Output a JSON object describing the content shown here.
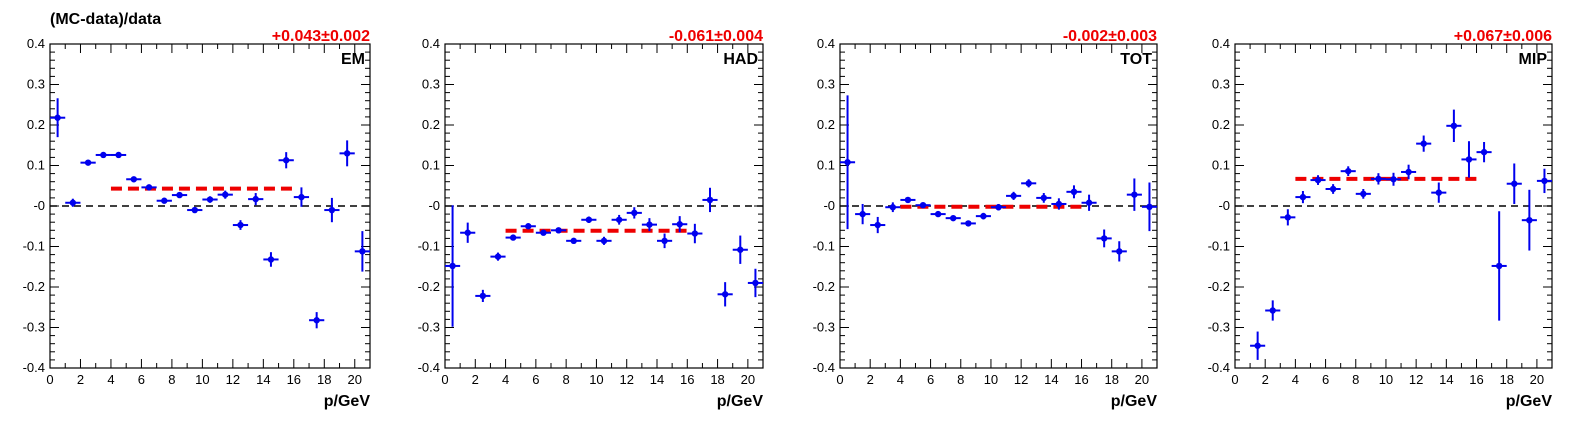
{
  "page_ylabel": "(MC-data)/data",
  "chart_data": [
    {
      "type": "scatter",
      "label": "EM",
      "fit_text": "+0.043±0.002",
      "fit_value": 0.043,
      "fit_range": [
        4,
        16
      ],
      "xlabel": "p/GeV",
      "xlim": [
        0,
        21
      ],
      "ylim": [
        -0.4,
        0.4
      ],
      "x_ticks": [
        0,
        2,
        4,
        6,
        8,
        10,
        12,
        14,
        16,
        18,
        20
      ],
      "y_ticks": [
        -0.4,
        -0.3,
        -0.2,
        -0.1,
        0,
        0.1,
        0.2,
        0.3,
        0.4
      ],
      "y_tick_labels": [
        "-0.4",
        "-0.3",
        "-0.2",
        "-0.1",
        "-0",
        "0.1",
        "0.2",
        "0.3",
        "0.4"
      ],
      "points": [
        {
          "x": 0.5,
          "y": 0.218,
          "err": 0.048
        },
        {
          "x": 1.5,
          "y": 0.008,
          "err": 0.01
        },
        {
          "x": 2.5,
          "y": 0.107,
          "err": 0.004
        },
        {
          "x": 3.5,
          "y": 0.126,
          "err": 0.003
        },
        {
          "x": 4.5,
          "y": 0.126,
          "err": 0.003
        },
        {
          "x": 5.5,
          "y": 0.066,
          "err": 0.004
        },
        {
          "x": 6.5,
          "y": 0.046,
          "err": 0.004
        },
        {
          "x": 7.5,
          "y": 0.013,
          "err": 0.005
        },
        {
          "x": 8.5,
          "y": 0.027,
          "err": 0.006
        },
        {
          "x": 9.5,
          "y": -0.01,
          "err": 0.007
        },
        {
          "x": 10.5,
          "y": 0.016,
          "err": 0.008
        },
        {
          "x": 11.5,
          "y": 0.028,
          "err": 0.01
        },
        {
          "x": 12.5,
          "y": -0.047,
          "err": 0.012
        },
        {
          "x": 13.5,
          "y": 0.017,
          "err": 0.015
        },
        {
          "x": 14.5,
          "y": -0.132,
          "err": 0.018
        },
        {
          "x": 15.5,
          "y": 0.113,
          "err": 0.02
        },
        {
          "x": 16.5,
          "y": 0.022,
          "err": 0.024
        },
        {
          "x": 17.5,
          "y": -0.282,
          "err": 0.02
        },
        {
          "x": 18.5,
          "y": -0.01,
          "err": 0.03
        },
        {
          "x": 19.5,
          "y": 0.13,
          "err": 0.032
        },
        {
          "x": 20.5,
          "y": -0.112,
          "err": 0.05
        }
      ]
    },
    {
      "type": "scatter",
      "label": "HAD",
      "fit_text": "-0.061±0.004",
      "fit_value": -0.061,
      "fit_range": [
        4,
        16
      ],
      "xlabel": "p/GeV",
      "xlim": [
        0,
        21
      ],
      "ylim": [
        -0.4,
        0.4
      ],
      "x_ticks": [
        0,
        2,
        4,
        6,
        8,
        10,
        12,
        14,
        16,
        18,
        20
      ],
      "y_ticks": [
        -0.4,
        -0.3,
        -0.2,
        -0.1,
        0,
        0.1,
        0.2,
        0.3,
        0.4
      ],
      "y_tick_labels": [
        "-0.4",
        "-0.3",
        "-0.2",
        "-0.1",
        "-0",
        "0.1",
        "0.2",
        "0.3",
        "0.4"
      ],
      "points": [
        {
          "x": 0.5,
          "y": -0.148,
          "err": 0.15
        },
        {
          "x": 1.5,
          "y": -0.066,
          "err": 0.025
        },
        {
          "x": 2.5,
          "y": -0.222,
          "err": 0.015
        },
        {
          "x": 3.5,
          "y": -0.125,
          "err": 0.01
        },
        {
          "x": 4.5,
          "y": -0.078,
          "err": 0.007
        },
        {
          "x": 5.5,
          "y": -0.05,
          "err": 0.006
        },
        {
          "x": 6.5,
          "y": -0.066,
          "err": 0.006
        },
        {
          "x": 7.5,
          "y": -0.06,
          "err": 0.006
        },
        {
          "x": 8.5,
          "y": -0.086,
          "err": 0.007
        },
        {
          "x": 9.5,
          "y": -0.034,
          "err": 0.008
        },
        {
          "x": 10.5,
          "y": -0.086,
          "err": 0.01
        },
        {
          "x": 11.5,
          "y": -0.034,
          "err": 0.012
        },
        {
          "x": 12.5,
          "y": -0.017,
          "err": 0.014
        },
        {
          "x": 13.5,
          "y": -0.046,
          "err": 0.016
        },
        {
          "x": 14.5,
          "y": -0.086,
          "err": 0.018
        },
        {
          "x": 15.5,
          "y": -0.045,
          "err": 0.02
        },
        {
          "x": 16.5,
          "y": -0.068,
          "err": 0.024
        },
        {
          "x": 17.5,
          "y": 0.015,
          "err": 0.03
        },
        {
          "x": 18.5,
          "y": -0.218,
          "err": 0.03
        },
        {
          "x": 19.5,
          "y": -0.108,
          "err": 0.035
        },
        {
          "x": 20.5,
          "y": -0.19,
          "err": 0.035
        }
      ]
    },
    {
      "type": "scatter",
      "label": "TOT",
      "fit_text": "-0.002±0.003",
      "fit_value": -0.002,
      "fit_range": [
        4,
        16
      ],
      "xlabel": "p/GeV",
      "xlim": [
        0,
        21
      ],
      "ylim": [
        -0.4,
        0.4
      ],
      "x_ticks": [
        0,
        2,
        4,
        6,
        8,
        10,
        12,
        14,
        16,
        18,
        20
      ],
      "y_ticks": [
        -0.4,
        -0.3,
        -0.2,
        -0.1,
        0,
        0.1,
        0.2,
        0.3,
        0.4
      ],
      "y_tick_labels": [
        "-0.4",
        "-0.3",
        "-0.2",
        "-0.1",
        "-0",
        "0.1",
        "0.2",
        "0.3",
        "0.4"
      ],
      "points": [
        {
          "x": 0.5,
          "y": 0.108,
          "err": 0.165
        },
        {
          "x": 1.5,
          "y": -0.02,
          "err": 0.025
        },
        {
          "x": 2.5,
          "y": -0.047,
          "err": 0.02
        },
        {
          "x": 3.5,
          "y": -0.003,
          "err": 0.012
        },
        {
          "x": 4.5,
          "y": 0.015,
          "err": 0.007
        },
        {
          "x": 5.5,
          "y": 0.002,
          "err": 0.005
        },
        {
          "x": 6.5,
          "y": -0.02,
          "err": 0.005
        },
        {
          "x": 7.5,
          "y": -0.03,
          "err": 0.005
        },
        {
          "x": 8.5,
          "y": -0.043,
          "err": 0.006
        },
        {
          "x": 9.5,
          "y": -0.025,
          "err": 0.008
        },
        {
          "x": 10.5,
          "y": -0.003,
          "err": 0.008
        },
        {
          "x": 11.5,
          "y": 0.025,
          "err": 0.01
        },
        {
          "x": 12.5,
          "y": 0.056,
          "err": 0.01
        },
        {
          "x": 13.5,
          "y": 0.02,
          "err": 0.012
        },
        {
          "x": 14.5,
          "y": 0.005,
          "err": 0.014
        },
        {
          "x": 15.5,
          "y": 0.035,
          "err": 0.016
        },
        {
          "x": 16.5,
          "y": 0.008,
          "err": 0.02
        },
        {
          "x": 17.5,
          "y": -0.08,
          "err": 0.022
        },
        {
          "x": 18.5,
          "y": -0.112,
          "err": 0.025
        },
        {
          "x": 19.5,
          "y": 0.028,
          "err": 0.04
        },
        {
          "x": 20.5,
          "y": -0.002,
          "err": 0.06
        }
      ]
    },
    {
      "type": "scatter",
      "label": "MIP",
      "fit_text": "+0.067±0.006",
      "fit_value": 0.067,
      "fit_range": [
        4,
        16
      ],
      "xlabel": "p/GeV",
      "xlim": [
        0,
        21
      ],
      "ylim": [
        -0.4,
        0.4
      ],
      "x_ticks": [
        0,
        2,
        4,
        6,
        8,
        10,
        12,
        14,
        16,
        18,
        20
      ],
      "y_ticks": [
        -0.4,
        -0.3,
        -0.2,
        -0.1,
        0,
        0.1,
        0.2,
        0.3,
        0.4
      ],
      "y_tick_labels": [
        "-0.4",
        "-0.3",
        "-0.2",
        "-0.1",
        "-0",
        "0.1",
        "0.2",
        "0.3",
        "0.4"
      ],
      "points": [
        {
          "x": 1.5,
          "y": -0.345,
          "err": 0.035
        },
        {
          "x": 2.5,
          "y": -0.258,
          "err": 0.025
        },
        {
          "x": 3.5,
          "y": -0.028,
          "err": 0.02
        },
        {
          "x": 4.5,
          "y": 0.022,
          "err": 0.015
        },
        {
          "x": 5.5,
          "y": 0.064,
          "err": 0.012
        },
        {
          "x": 6.5,
          "y": 0.042,
          "err": 0.012
        },
        {
          "x": 7.5,
          "y": 0.086,
          "err": 0.012
        },
        {
          "x": 8.5,
          "y": 0.03,
          "err": 0.012
        },
        {
          "x": 9.5,
          "y": 0.067,
          "err": 0.014
        },
        {
          "x": 10.5,
          "y": 0.066,
          "err": 0.016
        },
        {
          "x": 11.5,
          "y": 0.084,
          "err": 0.018
        },
        {
          "x": 12.5,
          "y": 0.154,
          "err": 0.02
        },
        {
          "x": 13.5,
          "y": 0.033,
          "err": 0.025
        },
        {
          "x": 14.5,
          "y": 0.198,
          "err": 0.04
        },
        {
          "x": 15.5,
          "y": 0.115,
          "err": 0.045
        },
        {
          "x": 16.5,
          "y": 0.133,
          "err": 0.025
        },
        {
          "x": 17.5,
          "y": -0.148,
          "err": 0.135
        },
        {
          "x": 18.5,
          "y": 0.055,
          "err": 0.05
        },
        {
          "x": 19.5,
          "y": -0.035,
          "err": 0.075
        },
        {
          "x": 20.5,
          "y": 0.062,
          "err": 0.03
        }
      ]
    }
  ]
}
